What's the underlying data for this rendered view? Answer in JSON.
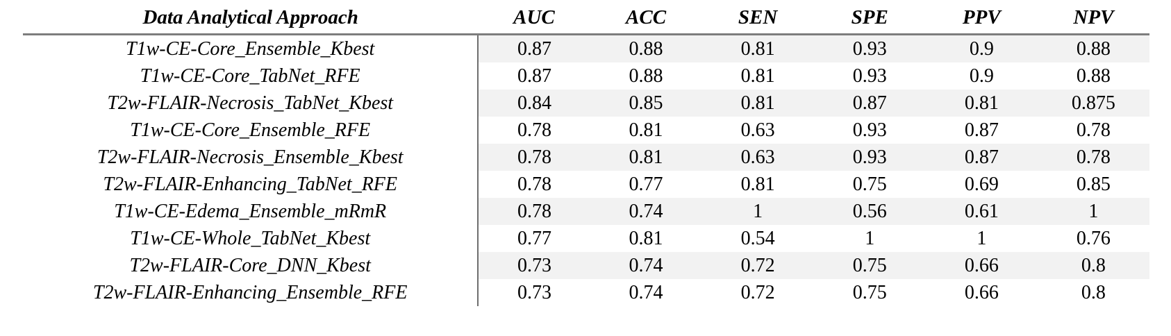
{
  "table": {
    "columns": [
      "Data Analytical Approach",
      "AUC",
      "ACC",
      "SEN",
      "SPE",
      "PPV",
      "NPV"
    ],
    "rows": [
      {
        "approach": "T1w-CE-Core_Ensemble_Kbest",
        "values": [
          "0.87",
          "0.88",
          "0.81",
          "0.93",
          "0.9",
          "0.88"
        ]
      },
      {
        "approach": "T1w-CE-Core_TabNet_RFE",
        "values": [
          "0.87",
          "0.88",
          "0.81",
          "0.93",
          "0.9",
          "0.88"
        ]
      },
      {
        "approach": "T2w-FLAIR-Necrosis_TabNet_Kbest",
        "values": [
          "0.84",
          "0.85",
          "0.81",
          "0.87",
          "0.81",
          "0.875"
        ]
      },
      {
        "approach": "T1w-CE-Core_Ensemble_RFE",
        "values": [
          "0.78",
          "0.81",
          "0.63",
          "0.93",
          "0.87",
          "0.78"
        ]
      },
      {
        "approach": "T2w-FLAIR-Necrosis_Ensemble_Kbest",
        "values": [
          "0.78",
          "0.81",
          "0.63",
          "0.93",
          "0.87",
          "0.78"
        ]
      },
      {
        "approach": "T2w-FLAIR-Enhancing_TabNet_RFE",
        "values": [
          "0.78",
          "0.77",
          "0.81",
          "0.75",
          "0.69",
          "0.85"
        ]
      },
      {
        "approach": "T1w-CE-Edema_Ensemble_mRmR",
        "values": [
          "0.78",
          "0.74",
          "1",
          "0.56",
          "0.61",
          "1"
        ]
      },
      {
        "approach": "T1w-CE-Whole_TabNet_Kbest",
        "values": [
          "0.77",
          "0.81",
          "0.54",
          "1",
          "1",
          "0.76"
        ]
      },
      {
        "approach": "T2w-FLAIR-Core_DNN_Kbest",
        "values": [
          "0.73",
          "0.74",
          "0.72",
          "0.75",
          "0.66",
          "0.8"
        ]
      },
      {
        "approach": "T2w-FLAIR-Enhancing_Ensemble_RFE",
        "values": [
          "0.73",
          "0.74",
          "0.72",
          "0.75",
          "0.66",
          "0.8"
        ]
      }
    ]
  },
  "colors": {
    "background": "#ffffff",
    "text": "#000000",
    "row_shade": "#f2f2f2",
    "header_rule": "#7d7d7d",
    "column_divider": "#6e6e6e"
  }
}
